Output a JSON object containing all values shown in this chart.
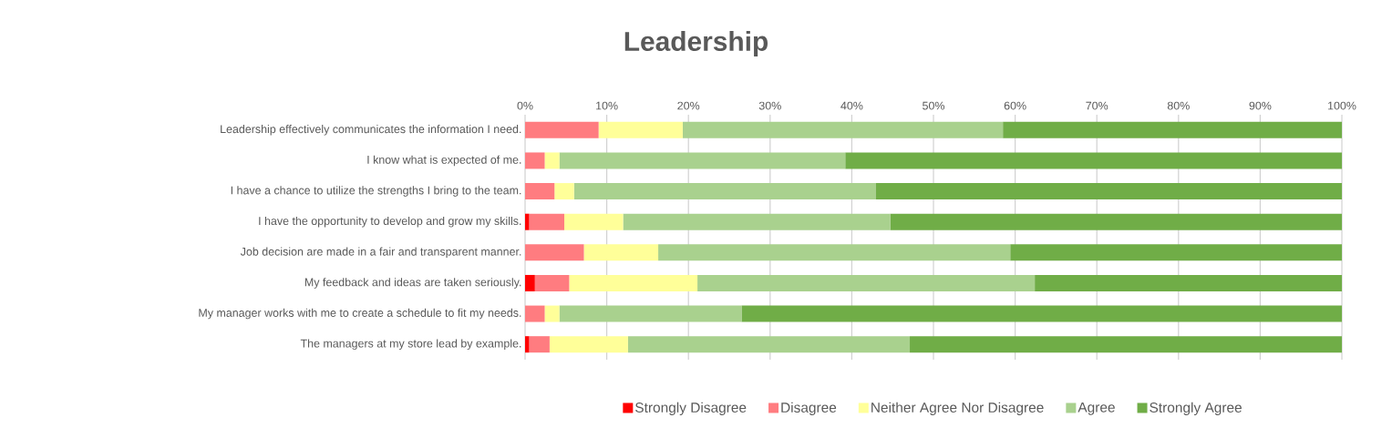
{
  "chart_data": {
    "type": "bar",
    "title": "Leadership",
    "orientation": "horizontal",
    "stacked": true,
    "categories": [
      "Leadership effectively communicates the information I need.",
      "I know what is expected of me.",
      "I have a chance to utilize the strengths I bring to the team.",
      "I have the opportunity to develop and grow my skills.",
      "Job decision are made in a fair and transparent manner.",
      "My feedback and ideas are taken seriously.",
      "My manager works with me to create a schedule to fit my needs.",
      "The managers at my store lead by example."
    ],
    "series": [
      {
        "name": "Strongly Disagree",
        "color": "#ff0000",
        "values": [
          0,
          0,
          0,
          0.5,
          0,
          1.2,
          0,
          0.5
        ]
      },
      {
        "name": "Disagree",
        "color": "#ff7c80",
        "values": [
          9.0,
          2.4,
          3.6,
          4.3,
          7.2,
          4.2,
          2.4,
          2.5
        ]
      },
      {
        "name": "Neither Agree Nor Disagree",
        "color": "#ffff99",
        "values": [
          10.3,
          1.8,
          2.4,
          7.2,
          9.1,
          15.7,
          1.8,
          9.6
        ]
      },
      {
        "name": "Agree",
        "color": "#a9d18e",
        "values": [
          39.2,
          35.0,
          36.9,
          32.7,
          43.1,
          41.3,
          22.3,
          34.5
        ]
      },
      {
        "name": "Strongly Agree",
        "color": "#70ad47",
        "values": [
          41.5,
          60.8,
          57.1,
          55.3,
          40.6,
          37.6,
          73.5,
          52.9
        ]
      }
    ],
    "xlim": [
      0,
      100
    ],
    "xticks": [
      {
        "value": 0,
        "label": "0%"
      },
      {
        "value": 10,
        "label": "10%"
      },
      {
        "value": 20,
        "label": "20%"
      },
      {
        "value": 30,
        "label": "30%"
      },
      {
        "value": 40,
        "label": "40%"
      },
      {
        "value": 50,
        "label": "50%"
      },
      {
        "value": 60,
        "label": "60%"
      },
      {
        "value": 70,
        "label": "70%"
      },
      {
        "value": 80,
        "label": "80%"
      },
      {
        "value": 90,
        "label": "90%"
      },
      {
        "value": 100,
        "label": "100%"
      }
    ],
    "grid": "x",
    "legend": "bottom"
  }
}
